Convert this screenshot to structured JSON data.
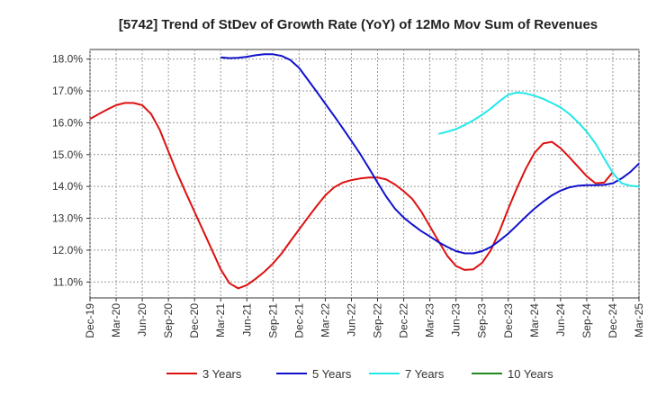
{
  "chart_data": {
    "type": "line",
    "title": "[5742]  Trend of StDev of Growth Rate (YoY) of 12Mo Mov Sum of Revenues",
    "xlabel": "",
    "ylabel": "",
    "ylim": [
      10.5,
      18.3
    ],
    "yticks": [
      11.0,
      12.0,
      13.0,
      14.0,
      15.0,
      16.0,
      17.0,
      18.0
    ],
    "ytick_labels": [
      "11.0%",
      "12.0%",
      "13.0%",
      "14.0%",
      "15.0%",
      "16.0%",
      "17.0%",
      "18.0%"
    ],
    "x_tick_labels": [
      "Dec-19",
      "Mar-20",
      "Jun-20",
      "Sep-20",
      "Dec-20",
      "Mar-21",
      "Jun-21",
      "Sep-21",
      "Dec-21",
      "Mar-22",
      "Jun-22",
      "Sep-22",
      "Dec-22",
      "Mar-23",
      "Jun-23",
      "Sep-23",
      "Dec-23",
      "Mar-24",
      "Jun-24",
      "Sep-24",
      "Dec-24",
      "Mar-25"
    ],
    "x_start": "Dec-19",
    "x_months": 63,
    "grid": true,
    "legend_position": "bottom",
    "series": [
      {
        "name": "3 Years",
        "color": "#dd1111",
        "start_month": 0,
        "values": [
          16.12,
          16.27,
          16.42,
          16.55,
          16.62,
          16.62,
          16.55,
          16.28,
          15.78,
          15.1,
          14.42,
          13.8,
          13.2,
          12.6,
          12.0,
          11.4,
          10.96,
          10.8,
          10.9,
          11.1,
          11.32,
          11.58,
          11.9,
          12.28,
          12.65,
          13.02,
          13.38,
          13.72,
          13.97,
          14.12,
          14.2,
          14.25,
          14.28,
          14.28,
          14.22,
          14.06,
          13.85,
          13.6,
          13.22,
          12.75,
          12.28,
          11.82,
          11.5,
          11.38,
          11.4,
          11.6,
          12.0,
          12.6,
          13.3,
          13.95,
          14.55,
          15.05,
          15.35,
          15.4,
          15.2,
          14.92,
          14.62,
          14.32,
          14.1,
          14.12,
          14.45
        ]
      },
      {
        "name": "5 Years",
        "color": "#1111cc",
        "start_month": 15,
        "values": [
          18.05,
          18.03,
          18.04,
          18.07,
          18.12,
          18.15,
          18.15,
          18.1,
          17.97,
          17.72,
          17.35,
          16.98,
          16.6,
          16.22,
          15.83,
          15.43,
          15.02,
          14.58,
          14.12,
          13.68,
          13.3,
          13.02,
          12.8,
          12.6,
          12.43,
          12.25,
          12.1,
          11.97,
          11.9,
          11.9,
          11.97,
          12.1,
          12.3,
          12.52,
          12.78,
          13.05,
          13.3,
          13.52,
          13.72,
          13.87,
          13.97,
          14.02,
          14.04,
          14.04,
          14.05,
          14.1,
          14.25,
          14.45,
          14.72
        ]
      },
      {
        "name": "7 Years",
        "color": "#22e8e8",
        "start_month": 40,
        "values": [
          15.65,
          15.72,
          15.8,
          15.93,
          16.08,
          16.25,
          16.45,
          16.68,
          16.88,
          16.95,
          16.92,
          16.85,
          16.75,
          16.62,
          16.48,
          16.28,
          16.02,
          15.72,
          15.35,
          14.88,
          14.42,
          14.1,
          14.02,
          14.0
        ]
      },
      {
        "name": "10 Years",
        "color": "#228822",
        "start_month": 0,
        "values": []
      }
    ]
  }
}
